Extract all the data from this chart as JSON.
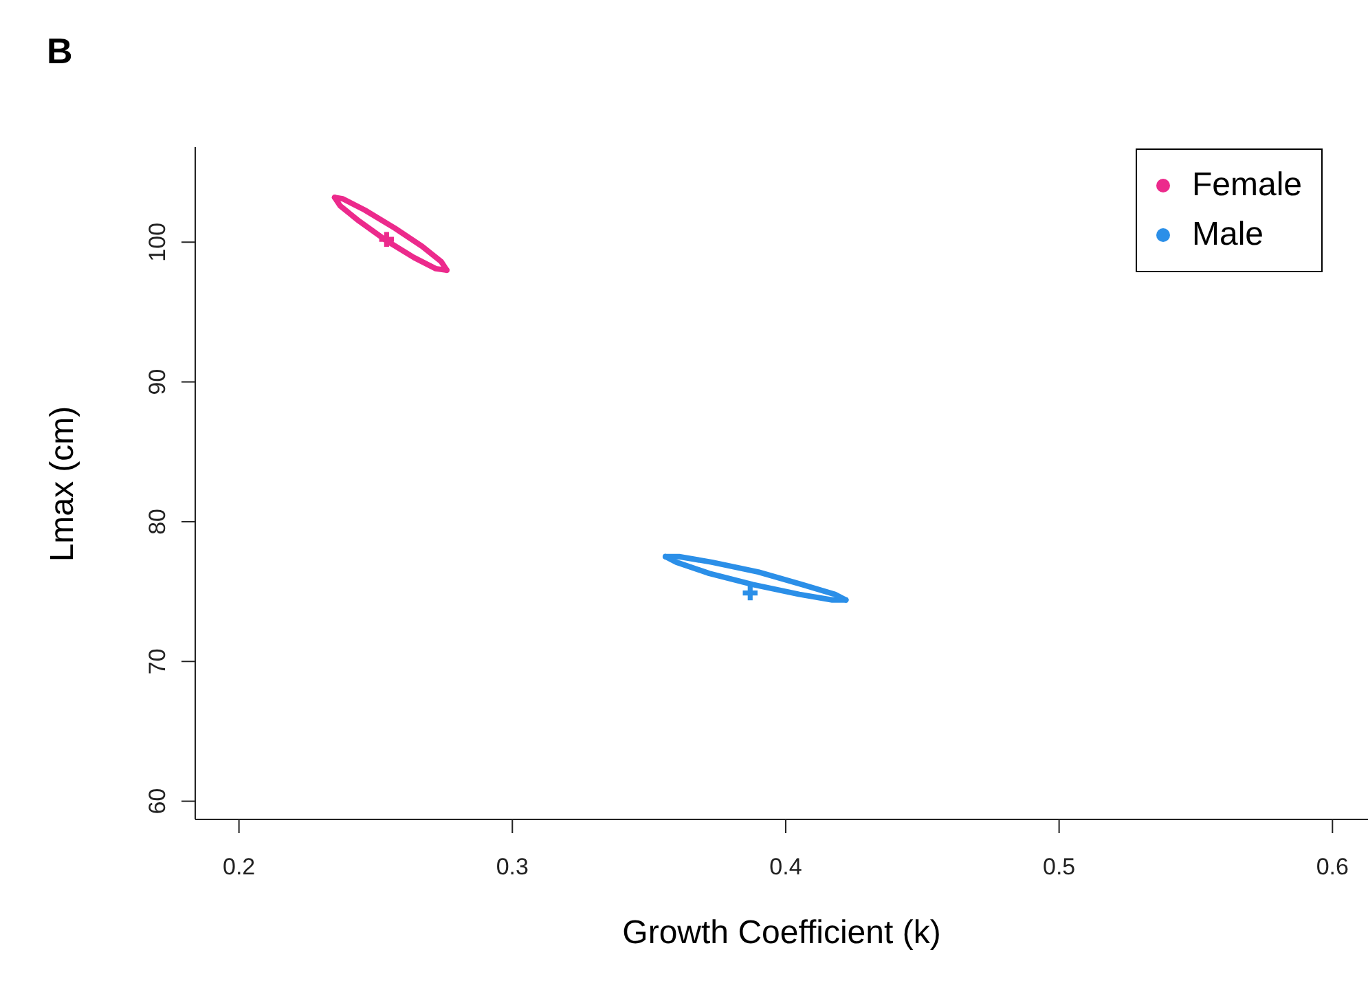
{
  "chart_data": {
    "type": "line",
    "title": "B",
    "xlabel": "Growth Coefficient (k)",
    "ylabel": "Lmax (cm)",
    "xlim": [
      0.184,
      0.613
    ],
    "ylim": [
      58.7,
      106.8
    ],
    "xticks": [
      0.2,
      0.3,
      0.4,
      0.5,
      0.6
    ],
    "yticks": [
      60,
      70,
      80,
      90,
      100
    ],
    "legend": "top right",
    "line_style": "solid",
    "series": [
      {
        "name": "Female",
        "marker": "none",
        "color": "#ec2a8c",
        "x": [
          0.235,
          0.238,
          0.246,
          0.257,
          0.267,
          0.274,
          0.276
        ],
        "values": [
          103.2,
          103.1,
          102.3,
          101.0,
          99.7,
          98.6,
          98.0
        ]
      },
      {
        "marker": "none",
        "color": "#ec2a8c",
        "x": [
          0.235,
          0.237,
          0.244,
          0.254,
          0.264,
          0.272,
          0.276
        ],
        "values": [
          103.2,
          102.6,
          101.5,
          100.1,
          98.9,
          98.1,
          98.0
        ]
      },
      {
        "type": "scatter",
        "marker": "cross",
        "color": "#ec2a8c",
        "x": [
          0.254
        ],
        "values": [
          100.2
        ]
      },
      {
        "name": "Male",
        "marker": "none",
        "color": "#2b8fe8",
        "x": [
          0.356,
          0.361,
          0.373,
          0.39,
          0.406,
          0.418,
          0.422
        ],
        "values": [
          77.5,
          77.5,
          77.1,
          76.4,
          75.5,
          74.8,
          74.4
        ]
      },
      {
        "marker": "none",
        "color": "#2b8fe8",
        "x": [
          0.356,
          0.36,
          0.372,
          0.388,
          0.405,
          0.417,
          0.422
        ],
        "values": [
          77.5,
          77.1,
          76.3,
          75.5,
          74.8,
          74.4,
          74.4
        ]
      },
      {
        "type": "scatter",
        "marker": "cross",
        "color": "#2b8fe8",
        "x": [
          0.387
        ],
        "values": [
          74.9
        ]
      }
    ]
  }
}
